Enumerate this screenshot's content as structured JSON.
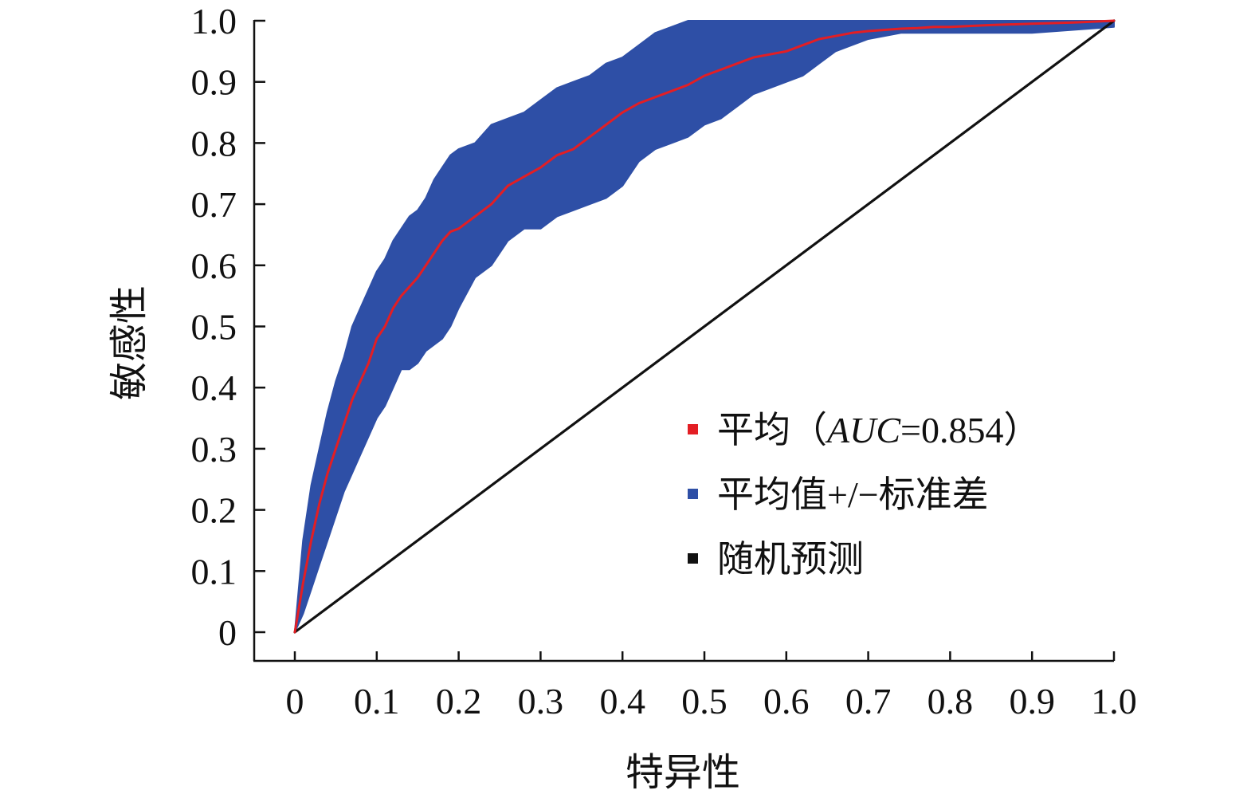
{
  "chart_data": {
    "type": "area",
    "xlabel": "特异性",
    "ylabel": "敏感性",
    "xlim": [
      0,
      1.0
    ],
    "ylim": [
      0,
      1.0
    ],
    "xticks": [
      "0",
      "0.1",
      "0.2",
      "0.3",
      "0.4",
      "0.5",
      "0.6",
      "0.7",
      "0.8",
      "0.9",
      "1.0"
    ],
    "yticks": [
      "0",
      "0.1",
      "0.2",
      "0.3",
      "0.4",
      "0.5",
      "0.6",
      "0.7",
      "0.8",
      "0.9",
      "1.0"
    ],
    "grid": false,
    "legend_position": "bottom-right",
    "legend": [
      {
        "label_parts": [
          "平均（",
          "AUC",
          "=0.854）"
        ],
        "color": "#e31e24"
      },
      {
        "label": "平均值+/−标准差",
        "color": "#2e4fa6"
      },
      {
        "label": "随机预测",
        "color": "#111111"
      }
    ],
    "series": [
      {
        "name": "平均（AUC=0.854）",
        "kind": "line",
        "color": "#e31e24",
        "x": [
          0,
          0.01,
          0.02,
          0.03,
          0.04,
          0.05,
          0.06,
          0.07,
          0.08,
          0.09,
          0.1,
          0.11,
          0.12,
          0.13,
          0.14,
          0.15,
          0.16,
          0.17,
          0.18,
          0.19,
          0.2,
          0.22,
          0.24,
          0.26,
          0.28,
          0.3,
          0.32,
          0.34,
          0.36,
          0.38,
          0.4,
          0.42,
          0.44,
          0.46,
          0.48,
          0.5,
          0.52,
          0.54,
          0.56,
          0.58,
          0.6,
          0.62,
          0.64,
          0.66,
          0.68,
          0.7,
          0.72,
          0.74,
          0.76,
          0.78,
          0.8,
          0.85,
          0.9,
          0.95,
          1.0
        ],
        "y": [
          0,
          0.08,
          0.15,
          0.21,
          0.26,
          0.3,
          0.34,
          0.38,
          0.41,
          0.44,
          0.48,
          0.5,
          0.53,
          0.55,
          0.565,
          0.58,
          0.6,
          0.62,
          0.64,
          0.655,
          0.66,
          0.68,
          0.7,
          0.73,
          0.745,
          0.76,
          0.78,
          0.79,
          0.81,
          0.83,
          0.85,
          0.865,
          0.875,
          0.885,
          0.895,
          0.91,
          0.92,
          0.93,
          0.94,
          0.945,
          0.95,
          0.96,
          0.97,
          0.975,
          0.98,
          0.983,
          0.985,
          0.987,
          0.988,
          0.99,
          0.99,
          0.993,
          0.995,
          0.997,
          1.0
        ]
      },
      {
        "name": "平均值+/−标准差",
        "kind": "band",
        "color": "#2e4fa6",
        "x": [
          0,
          0.01,
          0.02,
          0.03,
          0.04,
          0.05,
          0.06,
          0.07,
          0.08,
          0.09,
          0.1,
          0.11,
          0.12,
          0.13,
          0.14,
          0.15,
          0.16,
          0.17,
          0.18,
          0.19,
          0.2,
          0.22,
          0.24,
          0.26,
          0.28,
          0.3,
          0.32,
          0.34,
          0.36,
          0.38,
          0.4,
          0.42,
          0.44,
          0.46,
          0.48,
          0.5,
          0.52,
          0.54,
          0.56,
          0.58,
          0.6,
          0.62,
          0.64,
          0.66,
          0.68,
          0.7,
          0.72,
          0.74,
          0.76,
          0.78,
          0.8,
          0.85,
          0.9,
          0.95,
          1.0
        ],
        "upper": [
          0,
          0.15,
          0.24,
          0.3,
          0.36,
          0.41,
          0.45,
          0.5,
          0.53,
          0.56,
          0.59,
          0.61,
          0.64,
          0.66,
          0.68,
          0.69,
          0.71,
          0.74,
          0.76,
          0.78,
          0.79,
          0.8,
          0.83,
          0.84,
          0.85,
          0.87,
          0.89,
          0.9,
          0.91,
          0.93,
          0.94,
          0.96,
          0.98,
          0.99,
          1.0,
          1.0,
          1.0,
          1.0,
          1.0,
          1.0,
          1.0,
          1.0,
          1.0,
          1.0,
          1.0,
          1.0,
          1.0,
          1.0,
          1.0,
          1.0,
          1.0,
          1.0,
          1.0,
          1.0,
          1.0
        ],
        "lower": [
          0,
          0.03,
          0.07,
          0.11,
          0.15,
          0.19,
          0.23,
          0.26,
          0.29,
          0.32,
          0.35,
          0.37,
          0.4,
          0.43,
          0.43,
          0.44,
          0.46,
          0.47,
          0.48,
          0.5,
          0.53,
          0.58,
          0.6,
          0.64,
          0.66,
          0.66,
          0.68,
          0.69,
          0.7,
          0.71,
          0.73,
          0.77,
          0.79,
          0.8,
          0.81,
          0.83,
          0.84,
          0.86,
          0.88,
          0.89,
          0.9,
          0.91,
          0.93,
          0.95,
          0.96,
          0.97,
          0.975,
          0.98,
          0.98,
          0.98,
          0.98,
          0.98,
          0.98,
          0.985,
          0.99
        ]
      },
      {
        "name": "随机预测",
        "kind": "line",
        "color": "#111111",
        "x": [
          0,
          1.0
        ],
        "y": [
          0,
          1.0
        ]
      }
    ]
  }
}
